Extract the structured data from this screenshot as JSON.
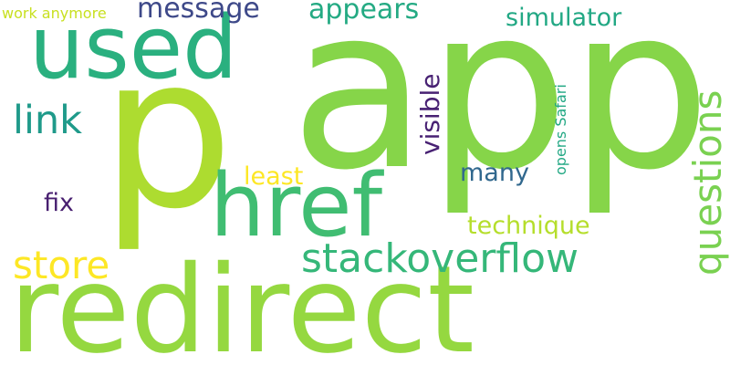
{
  "words": [
    {
      "text": "app",
      "color": "#86d549"
    },
    {
      "text": "p",
      "color": "#addc30"
    },
    {
      "text": "redirect",
      "color": "#95d840"
    },
    {
      "text": "used",
      "color": "#2ab07f"
    },
    {
      "text": "href",
      "color": "#40bd72"
    },
    {
      "text": "questions",
      "color": "#7ad151"
    },
    {
      "text": "stackoverflow",
      "color": "#35b779"
    },
    {
      "text": "link",
      "color": "#1f9a8a"
    },
    {
      "text": "store",
      "color": "#fde725"
    },
    {
      "text": "message",
      "color": "#3e4989"
    },
    {
      "text": "appears",
      "color": "#24aa83"
    },
    {
      "text": "simulator",
      "color": "#22a884"
    },
    {
      "text": "visible",
      "color": "#482173"
    },
    {
      "text": "technique",
      "color": "#b5de2b"
    },
    {
      "text": "many",
      "color": "#31688e"
    },
    {
      "text": "least",
      "color": "#fde725"
    },
    {
      "text": "fix",
      "color": "#481f70"
    },
    {
      "text": "work anymore",
      "color": "#c8e020"
    },
    {
      "text": "opens Safari",
      "color": "#22a884"
    }
  ]
}
